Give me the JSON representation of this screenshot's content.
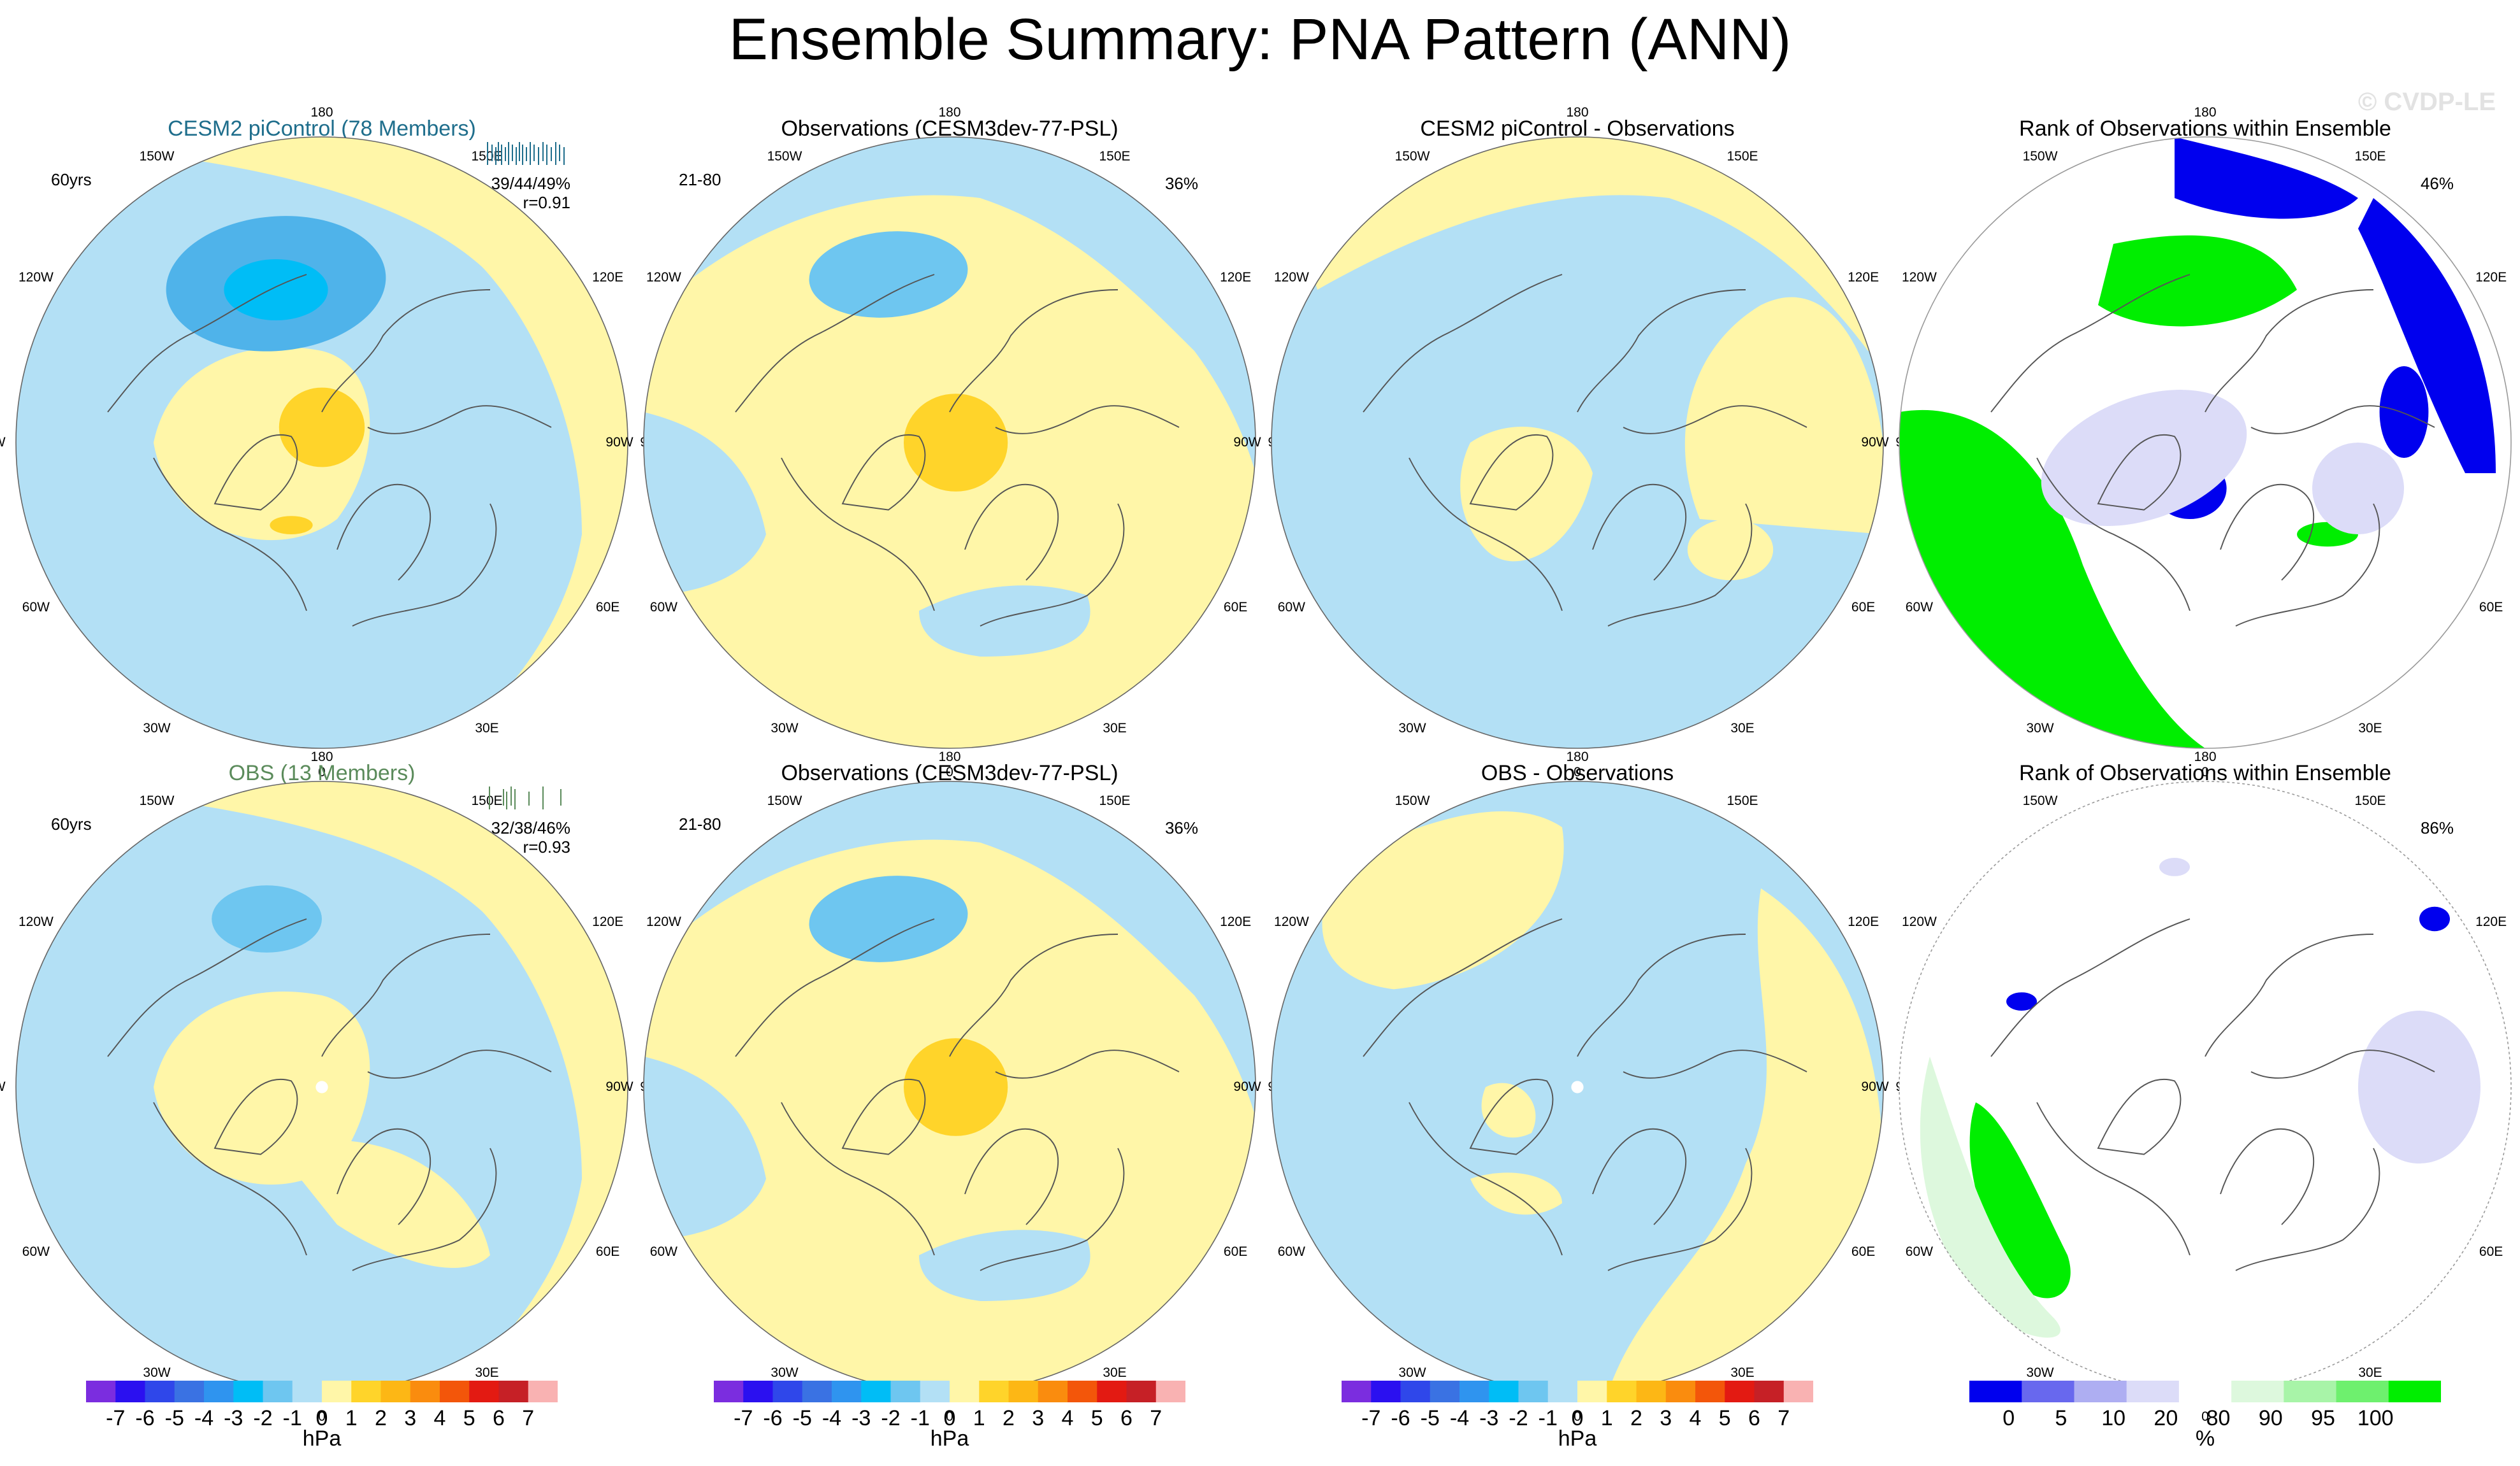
{
  "title": "Ensemble Summary: PNA Pattern (ANN)",
  "watermark": "© CVDP-LE",
  "lon_labels": [
    "180",
    "150E",
    "120E",
    "90E",
    "60E",
    "30E",
    "0",
    "30W",
    "60W",
    "90W",
    "120W",
    "150W"
  ],
  "colors": {
    "hpa": [
      "#7b2ddf",
      "#2b10f0",
      "#2f47ea",
      "#3a72e3",
      "#2f94ef",
      "#00bdf6",
      "#6ec6f0",
      "#b3e0f5",
      "#fff6a8",
      "#ffd42a",
      "#fdb715",
      "#fa8c0e",
      "#f3560a",
      "#e31a12",
      "#c62026",
      "#f9b2b2"
    ],
    "rank": [
      "#0000ee",
      "#6868ee",
      "#aeaef2",
      "#dcdcf8",
      "#ffffff",
      "#ddf8dd",
      "#a8f4a8",
      "#6ef06e",
      "#00ee00"
    ]
  },
  "panels": [
    {
      "id": "p11",
      "title": "CESM2 piControl (78 Members)",
      "title_color": "#1f6e8c",
      "corner": "60yrs",
      "stats": "39/44/49%",
      "stats2": "r=0.91",
      "type": "hpa"
    },
    {
      "id": "p12",
      "title": "Observations (CESM3dev-77-PSL)",
      "title_color": "#000000",
      "corner": "21-80",
      "stats": "36%",
      "stats2": "",
      "type": "hpa"
    },
    {
      "id": "p13",
      "title": "CESM2 piControl - Observations",
      "title_color": "#000000",
      "corner": "",
      "stats": "",
      "stats2": "",
      "type": "hpa"
    },
    {
      "id": "p14",
      "title": "Rank of Observations within Ensemble",
      "title_color": "#000000",
      "corner": "",
      "stats": "46%",
      "stats2": "",
      "type": "rank"
    },
    {
      "id": "p21",
      "title": "OBS (13 Members)",
      "title_color": "#5b8b5b",
      "corner": "60yrs",
      "stats": "32/38/46%",
      "stats2": "r=0.93",
      "type": "hpa"
    },
    {
      "id": "p22",
      "title": "Observations (CESM3dev-77-PSL)",
      "title_color": "#000000",
      "corner": "21-80",
      "stats": "36%",
      "stats2": "",
      "type": "hpa"
    },
    {
      "id": "p23",
      "title": "OBS - Observations",
      "title_color": "#000000",
      "corner": "",
      "stats": "",
      "stats2": "",
      "type": "hpa"
    },
    {
      "id": "p24",
      "title": "Rank of Observations within Ensemble",
      "title_color": "#000000",
      "corner": "",
      "stats": "86%",
      "stats2": "",
      "type": "rank"
    }
  ],
  "chart_data": {
    "type": "heatmap",
    "title": "Ensemble Summary: PNA Pattern (ANN)",
    "projection": "north polar stereographic",
    "pressure_colorbar": {
      "unit": "hPa",
      "levels": [
        -7,
        -6,
        -5,
        -4,
        -3,
        -2,
        -1,
        0,
        1,
        2,
        3,
        4,
        5,
        6,
        7
      ],
      "tick_labels": [
        "-7",
        "-6",
        "-5",
        "-4",
        "-3",
        "-2",
        "-1",
        "0",
        "1",
        "2",
        "3",
        "4",
        "5",
        "6",
        "7"
      ]
    },
    "rank_colorbar": {
      "unit": "%",
      "levels": [
        0,
        5,
        10,
        20,
        80,
        90,
        95,
        100
      ],
      "tick_labels": [
        "0",
        "5",
        "10",
        "20",
        "80",
        "90",
        "95",
        "100"
      ]
    },
    "panel_values": [
      {
        "title": "CESM2 piControl (78 Members)",
        "pattern_min_hPa": -3,
        "pattern_max_hPa": 2,
        "pattern_correlation": 0.91,
        "percent_variance": [
          39,
          44,
          49
        ]
      },
      {
        "title": "Observations (CESM3dev-77-PSL)",
        "pattern_min_hPa": -2,
        "pattern_max_hPa": 2,
        "percent_variance": 36
      },
      {
        "title": "CESM2 piControl - Observations",
        "difference_range_hPa": [
          -1,
          1
        ]
      },
      {
        "title": "Rank of Observations within Ensemble",
        "fraction_outside_10_90": 46
      },
      {
        "title": "OBS (13 Members)",
        "pattern_min_hPa": -2,
        "pattern_max_hPa": 1,
        "pattern_correlation": 0.93,
        "percent_variance": [
          32,
          38,
          46
        ]
      },
      {
        "title": "Observations (CESM3dev-77-PSL)",
        "pattern_min_hPa": -2,
        "pattern_max_hPa": 2,
        "percent_variance": 36
      },
      {
        "title": "OBS - Observations",
        "difference_range_hPa": [
          -1,
          1
        ]
      },
      {
        "title": "Rank of Observations within Ensemble",
        "fraction_outside_10_90": 86
      }
    ]
  }
}
